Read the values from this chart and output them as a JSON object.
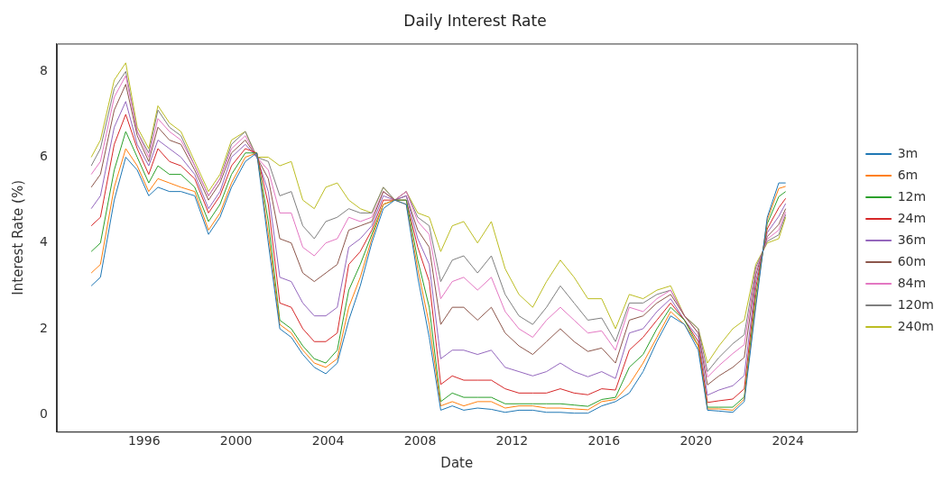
{
  "chart_data": {
    "type": "line",
    "title": "Daily Interest Rate",
    "xlabel": "Date",
    "ylabel": "Interest Rate (%)",
    "x": [
      1993.7,
      1994.1,
      1994.7,
      1995.2,
      1995.7,
      1996.2,
      1996.6,
      1997.1,
      1997.6,
      1998.2,
      1998.8,
      1999.3,
      1999.8,
      2000.4,
      2000.9,
      2001.4,
      2001.9,
      2002.4,
      2002.9,
      2003.4,
      2003.9,
      2004.4,
      2004.9,
      2005.4,
      2005.9,
      2006.4,
      2006.9,
      2007.4,
      2007.9,
      2008.4,
      2008.9,
      2009.4,
      2009.9,
      2010.5,
      2011.1,
      2011.7,
      2012.3,
      2012.9,
      2013.5,
      2014.1,
      2014.7,
      2015.3,
      2015.9,
      2016.5,
      2017.1,
      2017.7,
      2018.3,
      2018.9,
      2019.5,
      2020.1,
      2020.5,
      2021.0,
      2021.6,
      2022.1,
      2022.6,
      2023.1,
      2023.6,
      2023.9
    ],
    "series": [
      {
        "name": "3m",
        "color": "#1f77b4",
        "values": [
          3.0,
          3.2,
          5.0,
          6.0,
          5.7,
          5.1,
          5.3,
          5.2,
          5.2,
          5.1,
          4.2,
          4.6,
          5.3,
          5.9,
          6.1,
          4.0,
          2.0,
          1.8,
          1.4,
          1.1,
          0.95,
          1.2,
          2.2,
          3.0,
          4.0,
          4.8,
          5.0,
          4.9,
          3.2,
          1.8,
          0.1,
          0.2,
          0.1,
          0.15,
          0.12,
          0.05,
          0.1,
          0.1,
          0.05,
          0.05,
          0.03,
          0.03,
          0.2,
          0.3,
          0.5,
          1.0,
          1.7,
          2.3,
          2.1,
          1.5,
          0.1,
          0.08,
          0.05,
          0.3,
          2.5,
          4.6,
          5.4,
          5.4
        ]
      },
      {
        "name": "6m",
        "color": "#ff7f0e",
        "values": [
          3.3,
          3.5,
          5.3,
          6.2,
          5.8,
          5.2,
          5.5,
          5.4,
          5.3,
          5.2,
          4.3,
          4.7,
          5.4,
          6.0,
          6.1,
          4.2,
          2.1,
          1.9,
          1.5,
          1.2,
          1.1,
          1.3,
          2.5,
          3.2,
          4.1,
          4.9,
          5.0,
          4.9,
          3.4,
          2.1,
          0.2,
          0.3,
          0.2,
          0.3,
          0.3,
          0.15,
          0.2,
          0.2,
          0.15,
          0.15,
          0.13,
          0.11,
          0.3,
          0.35,
          0.7,
          1.2,
          1.8,
          2.4,
          2.1,
          1.6,
          0.13,
          0.13,
          0.1,
          0.36,
          2.6,
          4.54,
          5.27,
          5.32
        ]
      },
      {
        "name": "12m",
        "color": "#2ca02c",
        "values": [
          3.8,
          4.0,
          5.7,
          6.6,
          6.0,
          5.4,
          5.8,
          5.6,
          5.6,
          5.3,
          4.5,
          4.9,
          5.6,
          6.1,
          6.1,
          4.5,
          2.2,
          2.0,
          1.6,
          1.3,
          1.2,
          1.5,
          2.9,
          3.5,
          4.2,
          4.9,
          5.0,
          5.0,
          3.6,
          2.5,
          0.3,
          0.5,
          0.4,
          0.4,
          0.4,
          0.25,
          0.25,
          0.25,
          0.25,
          0.25,
          0.22,
          0.19,
          0.35,
          0.4,
          1.1,
          1.4,
          2.0,
          2.5,
          2.2,
          1.6,
          0.17,
          0.17,
          0.17,
          0.41,
          2.75,
          4.45,
          5.08,
          5.2
        ]
      },
      {
        "name": "24m",
        "color": "#d62728",
        "values": [
          4.4,
          4.6,
          6.3,
          7.0,
          6.2,
          5.6,
          6.2,
          5.9,
          5.8,
          5.5,
          4.7,
          5.1,
          5.8,
          6.2,
          6.1,
          4.9,
          2.6,
          2.5,
          2.0,
          1.7,
          1.7,
          1.9,
          3.5,
          3.8,
          4.3,
          5.0,
          5.0,
          5.0,
          3.9,
          3.1,
          0.7,
          0.9,
          0.8,
          0.8,
          0.8,
          0.6,
          0.5,
          0.5,
          0.5,
          0.6,
          0.5,
          0.46,
          0.6,
          0.57,
          1.5,
          1.8,
          2.2,
          2.6,
          2.2,
          1.7,
          0.28,
          0.32,
          0.36,
          0.6,
          2.95,
          4.33,
          4.82,
          5.04
        ]
      },
      {
        "name": "36m",
        "color": "#9467bd",
        "values": [
          4.8,
          5.1,
          6.7,
          7.3,
          6.3,
          5.8,
          6.4,
          6.2,
          6.0,
          5.6,
          4.8,
          5.2,
          6.0,
          6.3,
          6.0,
          5.2,
          3.2,
          3.1,
          2.6,
          2.3,
          2.3,
          2.5,
          3.9,
          4.1,
          4.4,
          5.1,
          5.0,
          5.1,
          4.1,
          3.5,
          1.3,
          1.5,
          1.5,
          1.4,
          1.5,
          1.1,
          1.0,
          0.9,
          1.0,
          1.2,
          1.0,
          0.88,
          1.0,
          0.84,
          1.9,
          2.0,
          2.4,
          2.7,
          2.2,
          1.8,
          0.45,
          0.57,
          0.67,
          0.91,
          3.1,
          4.24,
          4.62,
          4.92
        ]
      },
      {
        "name": "60m",
        "color": "#8c564b",
        "values": [
          5.3,
          5.6,
          7.1,
          7.7,
          6.5,
          5.9,
          6.7,
          6.4,
          6.3,
          5.7,
          5.0,
          5.4,
          6.1,
          6.4,
          6.0,
          5.5,
          4.1,
          4.0,
          3.3,
          3.1,
          3.3,
          3.5,
          4.3,
          4.4,
          4.5,
          5.2,
          5.0,
          5.1,
          4.3,
          3.9,
          2.1,
          2.5,
          2.5,
          2.2,
          2.5,
          1.9,
          1.6,
          1.4,
          1.7,
          2.0,
          1.7,
          1.47,
          1.55,
          1.2,
          2.2,
          2.3,
          2.6,
          2.8,
          2.3,
          1.9,
          0.69,
          0.9,
          1.1,
          1.33,
          3.25,
          4.15,
          4.43,
          4.8
        ]
      },
      {
        "name": "84m",
        "color": "#e377c2",
        "values": [
          5.6,
          5.9,
          7.4,
          7.9,
          6.6,
          6.0,
          6.9,
          6.6,
          6.4,
          5.8,
          5.1,
          5.5,
          6.2,
          6.5,
          6.0,
          5.7,
          4.7,
          4.7,
          3.9,
          3.7,
          4.0,
          4.1,
          4.6,
          4.5,
          4.6,
          5.2,
          5.0,
          5.2,
          4.5,
          4.2,
          2.7,
          3.1,
          3.2,
          2.9,
          3.2,
          2.4,
          2.0,
          1.8,
          2.2,
          2.5,
          2.2,
          1.9,
          1.95,
          1.5,
          2.5,
          2.4,
          2.7,
          2.9,
          2.3,
          1.9,
          0.87,
          1.14,
          1.42,
          1.63,
          3.35,
          4.09,
          4.3,
          4.72
        ]
      },
      {
        "name": "120m",
        "color": "#7f7f7f",
        "values": [
          5.8,
          6.2,
          7.6,
          8.0,
          6.6,
          6.1,
          7.1,
          6.7,
          6.5,
          5.8,
          5.1,
          5.5,
          6.3,
          6.6,
          6.0,
          5.9,
          5.1,
          5.2,
          4.4,
          4.1,
          4.5,
          4.6,
          4.8,
          4.7,
          4.7,
          5.3,
          5.0,
          5.2,
          4.6,
          4.4,
          3.1,
          3.6,
          3.7,
          3.3,
          3.7,
          2.8,
          2.3,
          2.1,
          2.5,
          3.0,
          2.6,
          2.2,
          2.25,
          1.7,
          2.6,
          2.6,
          2.8,
          2.9,
          2.3,
          2.0,
          1.0,
          1.33,
          1.65,
          1.86,
          3.43,
          4.04,
          4.19,
          4.66
        ]
      },
      {
        "name": "240m",
        "color": "#bcbd22",
        "values": [
          6.0,
          6.4,
          7.8,
          8.2,
          6.7,
          6.2,
          7.2,
          6.8,
          6.6,
          5.9,
          5.2,
          5.6,
          6.4,
          6.6,
          6.0,
          6.0,
          5.8,
          5.9,
          5.0,
          4.8,
          5.3,
          5.4,
          5.0,
          4.8,
          4.7,
          5.3,
          5.0,
          5.2,
          4.7,
          4.6,
          3.8,
          4.4,
          4.5,
          4.0,
          4.5,
          3.4,
          2.8,
          2.5,
          3.1,
          3.6,
          3.2,
          2.7,
          2.7,
          2.0,
          2.8,
          2.7,
          2.9,
          3.0,
          2.3,
          2.0,
          1.2,
          1.6,
          2.0,
          2.2,
          3.5,
          4.0,
          4.1,
          4.6
        ]
      }
    ],
    "xlim": [
      1992.2,
      2027.0
    ],
    "xticks": [
      1996,
      2000,
      2004,
      2008,
      2012,
      2016,
      2020,
      2024
    ],
    "ylim": [
      -0.4,
      8.65
    ],
    "yticks": [
      0,
      2,
      4,
      6,
      8
    ],
    "grid": false,
    "legend": "right",
    "marker": "none",
    "line_style": "solid"
  }
}
